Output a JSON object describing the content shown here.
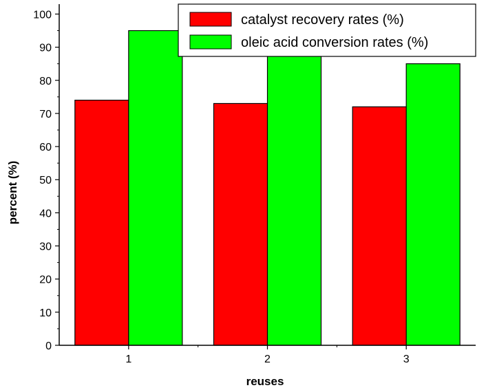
{
  "chart_data": {
    "type": "bar",
    "title": "",
    "xlabel": "reuses",
    "ylabel": "percent (%)",
    "categories": [
      "1",
      "2",
      "3"
    ],
    "series": [
      {
        "name": "catalyst recovery rates (%)",
        "values": [
          74,
          73,
          72
        ],
        "color": "#ff0000"
      },
      {
        "name": "oleic acid conversion rates (%)",
        "values": [
          95,
          88,
          85
        ],
        "color": "#00ff00"
      }
    ],
    "ylim": [
      0,
      103
    ],
    "yticks": [
      0,
      10,
      20,
      30,
      40,
      50,
      60,
      70,
      80,
      90,
      100
    ],
    "grid": false,
    "legend_position": "top-right"
  }
}
